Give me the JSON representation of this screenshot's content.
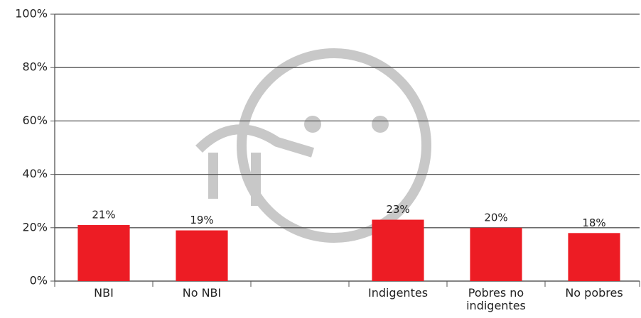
{
  "chart_data": {
    "type": "bar",
    "categories": [
      "NBI",
      "No NBI",
      null,
      "Indigentes",
      "Pobres no indigentes",
      "No pobres"
    ],
    "values": [
      21,
      19,
      null,
      23,
      20,
      18
    ],
    "value_labels": [
      "21%",
      "19%",
      null,
      "23%",
      "20%",
      "18%"
    ],
    "color": "#ed1c24",
    "ylim": [
      0,
      100
    ],
    "yticks": [
      {
        "value": 0,
        "label": "0%"
      },
      {
        "value": 20,
        "label": "20%"
      },
      {
        "value": 40,
        "label": "40%"
      },
      {
        "value": 60,
        "label": "60%"
      },
      {
        "value": 80,
        "label": "80%"
      },
      {
        "value": 100,
        "label": "100%"
      }
    ],
    "grid": true
  }
}
